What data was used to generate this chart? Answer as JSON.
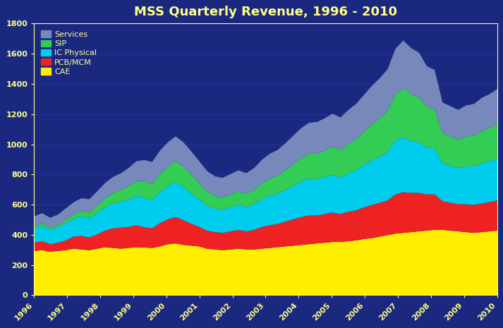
{
  "title": "MSS Quarterly Revenue, 1996 - 2010",
  "title_color": "#FFFF88",
  "background_color": "#1a2880",
  "plot_bg_color": "#1a2880",
  "tick_color": "#FFFF88",
  "grid_color": "#3344aa",
  "ylim": [
    0,
    1800
  ],
  "yticks": [
    0,
    200,
    400,
    600,
    800,
    1000,
    1200,
    1400,
    1600,
    1800
  ],
  "legend_labels": [
    "Services",
    "SIP",
    "IC Physical",
    "PCB/MCM",
    "CAE"
  ],
  "legend_colors": [
    "#7788bb",
    "#33cc55",
    "#00ccee",
    "#ee2222",
    "#ffee00"
  ],
  "series_colors": [
    "#ffee00",
    "#ee2222",
    "#00ccee",
    "#33cc55",
    "#7788bb"
  ],
  "x_labels": [
    "1996",
    "1997",
    "1998",
    "1999",
    "2000",
    "2001",
    "2002",
    "2003",
    "2004",
    "2005",
    "2006",
    "2007",
    "2008",
    "2009",
    "2010"
  ],
  "CAE": [
    295,
    300,
    290,
    295,
    300,
    310,
    305,
    300,
    310,
    320,
    315,
    310,
    315,
    320,
    318,
    315,
    325,
    340,
    345,
    335,
    330,
    325,
    310,
    305,
    300,
    305,
    310,
    305,
    305,
    310,
    315,
    320,
    325,
    330,
    335,
    340,
    345,
    350,
    355,
    355,
    360,
    365,
    375,
    380,
    390,
    400,
    410,
    415,
    420,
    425,
    430,
    435,
    435,
    430,
    425,
    420,
    415,
    420,
    425,
    430
  ],
  "PCB_MCM": [
    55,
    60,
    50,
    55,
    65,
    80,
    90,
    85,
    95,
    110,
    130,
    140,
    140,
    145,
    135,
    130,
    155,
    165,
    175,
    165,
    145,
    130,
    120,
    115,
    115,
    120,
    125,
    120,
    130,
    145,
    150,
    155,
    165,
    175,
    185,
    190,
    185,
    190,
    195,
    185,
    195,
    200,
    210,
    220,
    225,
    230,
    260,
    270,
    260,
    255,
    240,
    235,
    190,
    185,
    180,
    185,
    185,
    190,
    195,
    200
  ],
  "IC_Physical": [
    95,
    100,
    95,
    100,
    115,
    120,
    130,
    125,
    140,
    155,
    165,
    170,
    180,
    195,
    195,
    185,
    205,
    220,
    230,
    220,
    200,
    180,
    165,
    155,
    155,
    160,
    165,
    160,
    170,
    185,
    195,
    200,
    210,
    220,
    235,
    245,
    240,
    245,
    250,
    240,
    255,
    265,
    280,
    295,
    305,
    320,
    355,
    365,
    345,
    335,
    310,
    305,
    250,
    245,
    240,
    250,
    255,
    265,
    270,
    275
  ],
  "SIP": [
    15,
    18,
    15,
    18,
    22,
    28,
    35,
    40,
    50,
    60,
    70,
    80,
    90,
    100,
    110,
    110,
    120,
    130,
    140,
    135,
    125,
    110,
    95,
    85,
    80,
    85,
    90,
    88,
    95,
    105,
    115,
    120,
    130,
    145,
    155,
    165,
    170,
    175,
    185,
    185,
    195,
    205,
    220,
    240,
    255,
    275,
    310,
    325,
    310,
    300,
    270,
    260,
    200,
    195,
    190,
    200,
    205,
    215,
    220,
    230
  ],
  "Services": [
    65,
    68,
    65,
    68,
    75,
    80,
    85,
    88,
    95,
    100,
    105,
    110,
    120,
    130,
    140,
    145,
    155,
    160,
    165,
    160,
    155,
    145,
    135,
    130,
    130,
    135,
    140,
    138,
    145,
    155,
    165,
    170,
    180,
    190,
    200,
    205,
    210,
    215,
    220,
    215,
    225,
    235,
    245,
    255,
    265,
    275,
    300,
    315,
    305,
    295,
    270,
    260,
    205,
    200,
    195,
    205,
    210,
    220,
    225,
    235
  ]
}
